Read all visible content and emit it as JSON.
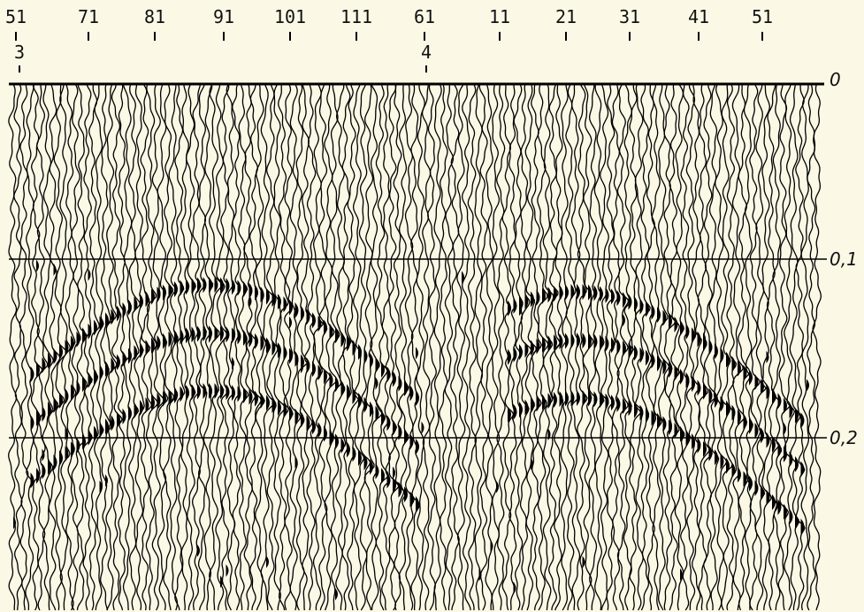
{
  "top_labels": [
    "51",
    "71",
    "81",
    "91",
    "101",
    "111",
    "61",
    "11",
    "21",
    "31",
    "41",
    "51"
  ],
  "station_labels": [
    "3",
    "4"
  ],
  "time_labels": [
    "0",
    "0,1",
    "0,2"
  ]
}
